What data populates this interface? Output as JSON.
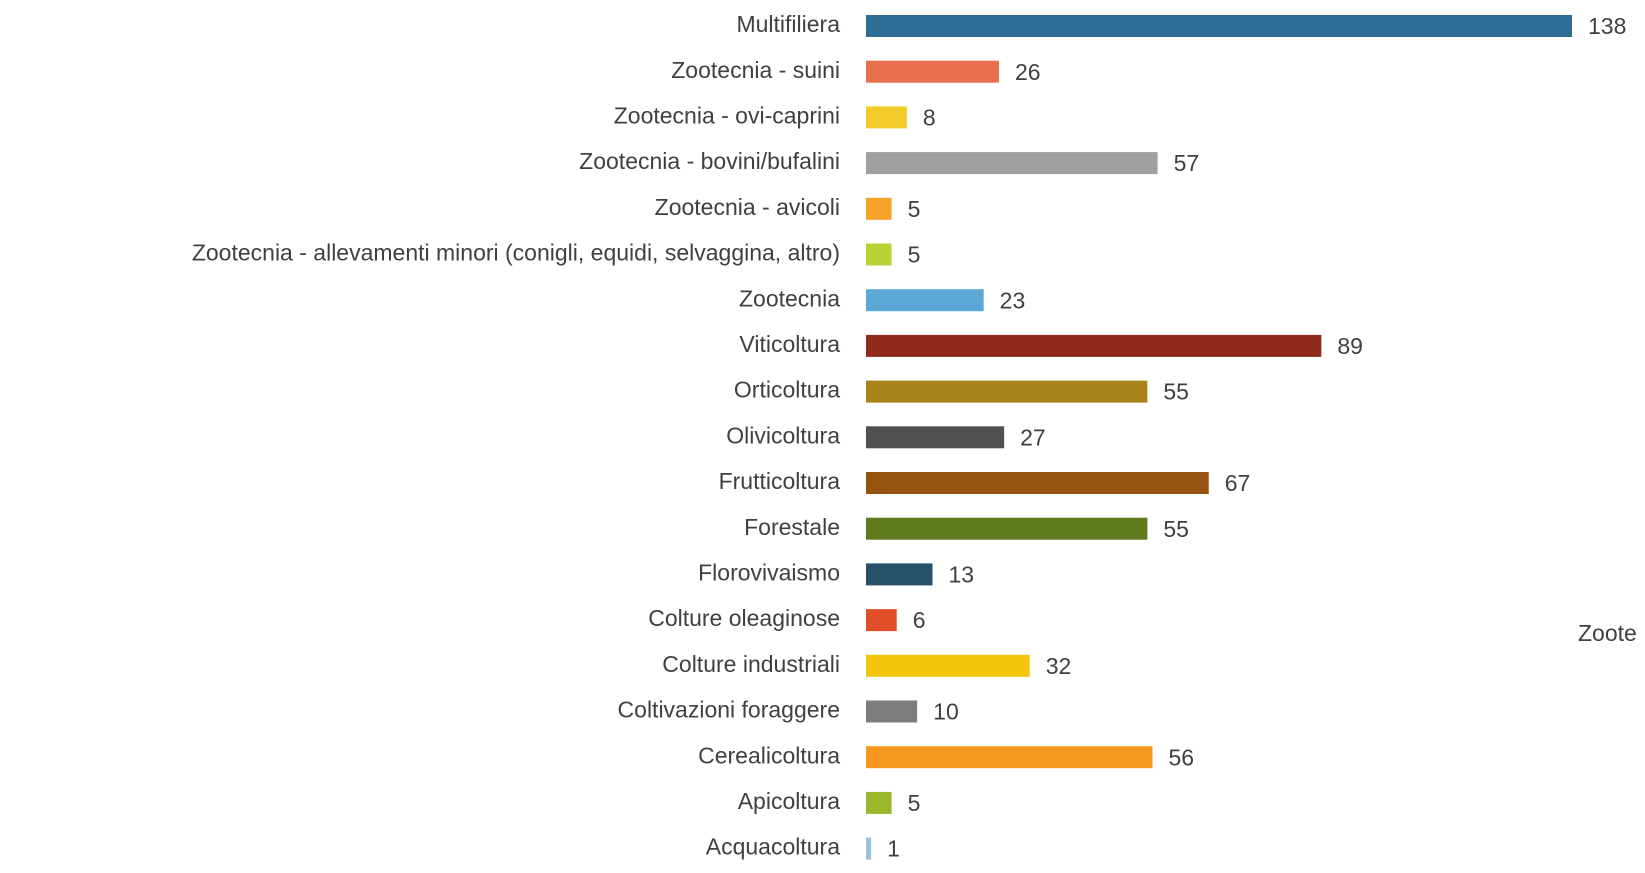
{
  "chart_data": {
    "type": "hbar",
    "categories": [
      "Multifiliera",
      "Zootecnia - suini",
      "Zootecnia - ovi-caprini",
      "Zootecnia - bovini/bufalini",
      "Zootecnia - avicoli",
      "Zootecnia - allevamenti minori (conigli, equidi, selvaggina, altro)",
      "Zootecnia",
      "Viticoltura",
      "Orticoltura",
      "Olivicoltura",
      "Frutticoltura",
      "Forestale",
      "Florovivaismo",
      "Colture oleaginose",
      "Colture industriali",
      "Coltivazioni foraggere",
      "Cerealicoltura",
      "Apicoltura",
      "Acquacoltura"
    ],
    "values": [
      138,
      26,
      8,
      57,
      5,
      5,
      23,
      89,
      55,
      27,
      67,
      55,
      13,
      6,
      32,
      10,
      56,
      5,
      1
    ],
    "colors": [
      "#2e6e96",
      "#e8704f",
      "#f2cc2a",
      "#a0a0a0",
      "#f7a229",
      "#b8d334",
      "#5ba8d6",
      "#8e2a1c",
      "#a88418",
      "#505050",
      "#955410",
      "#607a1e",
      "#27506b",
      "#e04e28",
      "#f2c40a",
      "#7d7d7d",
      "#f6981e",
      "#9ab82c",
      "#9dc0de"
    ],
    "annotations": [
      "Zoote"
    ]
  }
}
